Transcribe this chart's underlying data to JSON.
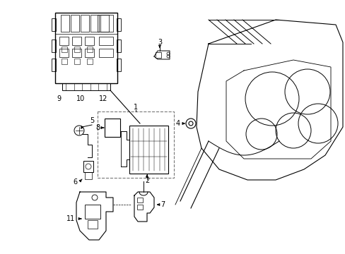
{
  "bg_color": "#ffffff",
  "line_color": "#000000",
  "fig_width": 4.89,
  "fig_height": 3.6,
  "dpi": 100,
  "gray": "#aaaaaa"
}
